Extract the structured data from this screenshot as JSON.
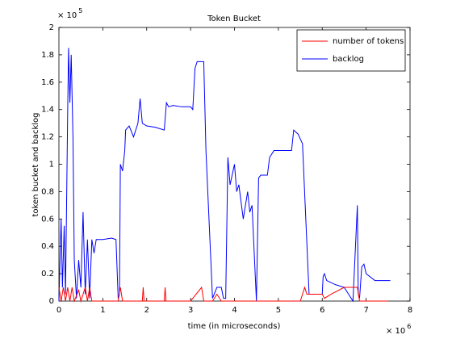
{
  "chart_data": {
    "type": "line",
    "title": "Token Bucket",
    "xlabel": "time (in microseconds)",
    "ylabel": "token bucket and backlog",
    "x_scale_label": "× 10",
    "x_scale_exponent": "6",
    "y_scale_label": "× 10",
    "y_scale_exponent": "5",
    "xlim": [
      0,
      8
    ],
    "xticks": [
      0,
      1,
      2,
      3,
      4,
      5,
      6,
      7,
      8
    ],
    "ylim": [
      0,
      2
    ],
    "yticks": [
      0,
      0.2,
      0.4,
      0.6,
      0.8,
      1,
      1.2,
      1.4,
      1.6,
      1.8,
      2
    ],
    "legend": "northeast",
    "series": [
      {
        "name": "number of tokens",
        "color": "#ff0000",
        "x": [
          0,
          0.05,
          0.1,
          0.15,
          0.2,
          0.25,
          0.3,
          0.35,
          0.45,
          0.5,
          0.6,
          0.65,
          0.7,
          0.75,
          1.0,
          1.35,
          1.4,
          1.45,
          1.9,
          1.92,
          1.94,
          2.4,
          2.42,
          2.44,
          3.0,
          3.25,
          3.3,
          3.5,
          3.6,
          3.7,
          5.5,
          5.6,
          5.65,
          6.0,
          6.05,
          6.2,
          6.5,
          6.8,
          6.85,
          7.5
        ],
        "values": [
          0.1,
          0,
          0.1,
          0,
          0.1,
          0,
          0.1,
          0,
          0.08,
          0,
          0.1,
          0,
          0.1,
          0,
          0,
          0,
          0.1,
          0,
          0,
          0.1,
          0,
          0,
          0.1,
          0,
          0,
          0.1,
          0,
          0,
          0.05,
          0,
          0,
          0.1,
          0.05,
          0.05,
          0.02,
          0.05,
          0.1,
          0.1,
          0,
          0
        ]
      },
      {
        "name": "backlog",
        "color": "#0000ff",
        "x": [
          0,
          0.05,
          0.08,
          0.12,
          0.15,
          0.2,
          0.22,
          0.25,
          0.28,
          0.32,
          0.35,
          0.4,
          0.45,
          0.5,
          0.55,
          0.6,
          0.65,
          0.7,
          0.75,
          0.8,
          0.85,
          1.0,
          1.2,
          1.3,
          1.35,
          1.38,
          1.4,
          1.45,
          1.5,
          1.52,
          1.6,
          1.7,
          1.8,
          1.85,
          1.9,
          2.0,
          2.2,
          2.4,
          2.45,
          2.5,
          2.6,
          2.8,
          3.0,
          3.05,
          3.1,
          3.15,
          3.3,
          3.35,
          3.5,
          3.6,
          3.7,
          3.75,
          3.8,
          3.85,
          3.9,
          4.0,
          4.05,
          4.1,
          4.2,
          4.3,
          4.35,
          4.4,
          4.5,
          4.55,
          4.6,
          4.75,
          4.8,
          4.9,
          5.0,
          5.1,
          5.2,
          5.3,
          5.35,
          5.45,
          5.55,
          5.7,
          5.8,
          6.0,
          6.02,
          6.05,
          6.1,
          6.3,
          6.5,
          6.6,
          6.7,
          6.8,
          6.82,
          6.85,
          6.9,
          6.95,
          7.0,
          7.2,
          7.4,
          7.55
        ],
        "values": [
          0,
          0.6,
          0.1,
          0.55,
          0.05,
          1.4,
          1.85,
          1.45,
          1.8,
          1.2,
          0.3,
          0.02,
          0.3,
          0.1,
          0.65,
          0.05,
          0.45,
          0.02,
          0.45,
          0.35,
          0.45,
          0.45,
          0.46,
          0.45,
          0.02,
          0.05,
          1.0,
          0.95,
          1.1,
          1.25,
          1.28,
          1.2,
          1.3,
          1.48,
          1.3,
          1.28,
          1.27,
          1.25,
          1.45,
          1.42,
          1.43,
          1.42,
          1.42,
          1.4,
          1.7,
          1.75,
          1.75,
          1.1,
          0.02,
          0.1,
          0.1,
          0.02,
          0.02,
          1.05,
          0.85,
          1.0,
          0.8,
          0.85,
          0.6,
          0.8,
          0.65,
          0.7,
          0,
          0.9,
          0.92,
          0.92,
          1.05,
          1.1,
          1.1,
          1.1,
          1.1,
          1.1,
          1.25,
          1.22,
          1.15,
          0.05,
          0.05,
          0.05,
          0.18,
          0.2,
          0.15,
          0.12,
          0.1,
          0.05,
          0,
          0.7,
          0.05,
          0.02,
          0.25,
          0.27,
          0.2,
          0.15,
          0.15,
          0.15
        ]
      }
    ]
  }
}
